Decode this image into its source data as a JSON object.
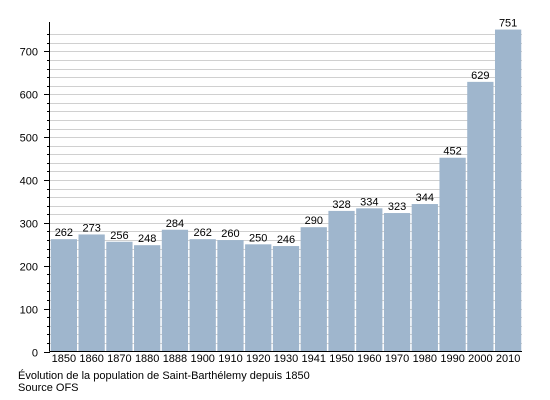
{
  "chart_data": {
    "type": "bar",
    "categories": [
      "1850",
      "1860",
      "1870",
      "1880",
      "1888",
      "1900",
      "1910",
      "1920",
      "1930",
      "1941",
      "1950",
      "1960",
      "1970",
      "1980",
      "1990",
      "2000",
      "2010"
    ],
    "values": [
      262,
      273,
      256,
      248,
      284,
      262,
      260,
      250,
      246,
      290,
      328,
      334,
      323,
      344,
      452,
      629,
      751
    ],
    "data_labels": [
      "262",
      "273",
      "256",
      "248",
      "284",
      "262",
      "260",
      "250",
      "246",
      "290",
      "328",
      "334",
      "323",
      "344",
      "452",
      "629",
      "751"
    ],
    "ylim": [
      0,
      750
    ],
    "y_ticks": [
      0,
      100,
      200,
      300,
      400,
      500,
      600,
      700
    ],
    "y_tick_labels": [
      "0",
      "100",
      "200",
      "300",
      "400",
      "500",
      "600",
      "700"
    ],
    "y_minor_step": 20,
    "grid": true,
    "bar_color": "#9fb6cd",
    "grid_color": "#d0d0d0",
    "axis_color": "#000000"
  },
  "caption": {
    "line1": "Évolution de la population de Saint-Barthélemy depuis 1850",
    "line2": "Source OFS"
  }
}
